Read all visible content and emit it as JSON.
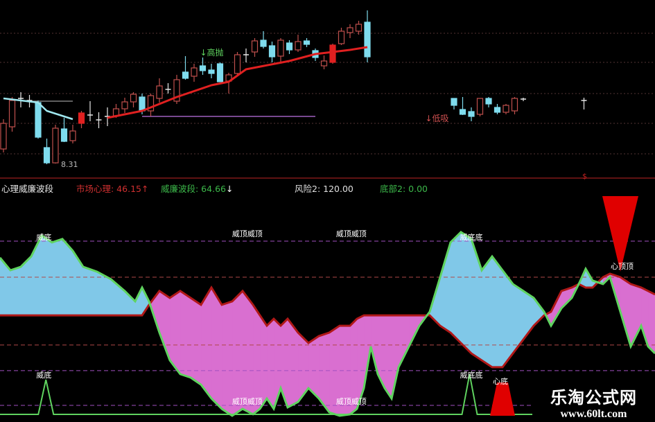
{
  "header": {
    "indicator_name": "心理威廉波段",
    "market_psych_label": "市场心理: 46.15",
    "market_psych_arrow": "↑",
    "williams_label": "威廉波段: 64.66",
    "williams_arrow": "↓",
    "risk_label": "风险2: 120.00",
    "bottom_label": "底部2: 0.00",
    "dollar_marker": "$"
  },
  "watermark": {
    "title": "乐淘公式网",
    "url": "www.60lt.com"
  },
  "colors": {
    "up": "#c0504d",
    "down": "#7fdcee",
    "ma": "#e02020",
    "williams_line": "#5fd35f",
    "psych_line": "#b01818",
    "fill_blue": "#80c8e8",
    "fill_pink": "#d96fd0",
    "signal_red": "#e00000"
  },
  "chart_data": [
    {
      "type": "candlestick",
      "title": "",
      "candles_ohlc": [
        [
          8.75,
          9.49,
          9.61,
          8.65
        ],
        [
          9.39,
          10.15,
          10.25,
          9.25
        ],
        [
          10.21,
          10.21,
          10.39,
          9.95
        ],
        [
          10.15,
          10.15,
          10.31,
          9.95
        ],
        [
          10.09,
          9.09,
          10.15,
          9.05
        ],
        [
          8.79,
          8.35,
          9.05,
          8.31
        ],
        [
          8.35,
          9.35,
          9.45,
          8.33
        ],
        [
          9.33,
          8.97,
          9.65,
          8.95
        ],
        [
          8.99,
          9.27,
          9.45,
          8.91
        ],
        [
          9.49,
          9.79,
          9.85,
          9.35
        ],
        [
          9.73,
          9.73,
          10.13,
          9.55
        ],
        [
          9.59,
          9.59,
          9.81,
          9.35
        ],
        [
          9.69,
          9.69,
          9.95,
          9.41
        ],
        [
          9.71,
          9.91,
          10.05,
          9.65
        ],
        [
          9.91,
          10.11,
          10.23,
          9.79
        ],
        [
          10.11,
          10.33,
          10.39,
          9.95
        ],
        [
          10.25,
          9.85,
          10.35,
          9.75
        ],
        [
          9.85,
          10.29,
          10.35,
          9.69
        ],
        [
          10.21,
          10.57,
          10.79,
          10.09
        ],
        [
          10.47,
          10.47,
          10.65,
          10.35
        ],
        [
          10.13,
          10.75,
          10.89,
          10.05
        ],
        [
          10.97,
          10.79,
          11.43,
          10.75
        ],
        [
          10.85,
          11.09,
          11.21,
          10.69
        ],
        [
          11.15,
          11.01,
          11.39,
          10.89
        ],
        [
          11.03,
          10.93,
          11.21,
          10.79
        ],
        [
          11.21,
          10.69,
          11.25,
          10.69
        ],
        [
          10.71,
          10.89,
          10.95,
          10.35
        ],
        [
          10.93,
          11.47,
          11.55,
          10.85
        ],
        [
          11.47,
          11.47,
          11.65,
          11.25
        ],
        [
          11.55,
          11.87,
          11.95,
          11.41
        ],
        [
          11.89,
          11.71,
          12.15,
          11.65
        ],
        [
          11.73,
          11.41,
          11.85,
          11.25
        ],
        [
          11.43,
          11.89,
          11.95,
          11.21
        ],
        [
          11.81,
          11.61,
          11.89,
          11.49
        ],
        [
          11.61,
          11.85,
          12.05,
          11.55
        ],
        [
          11.87,
          11.77,
          11.95,
          11.69
        ],
        [
          11.59,
          11.39,
          11.65,
          11.29
        ],
        [
          11.15,
          11.29,
          11.45,
          11.05
        ],
        [
          11.25,
          11.75,
          11.79,
          11.21
        ],
        [
          11.79,
          12.15,
          12.25,
          11.75
        ],
        [
          12.11,
          12.25,
          12.35,
          11.95
        ],
        [
          12.15,
          12.35,
          12.45,
          12.05
        ],
        [
          12.41,
          11.41,
          12.75,
          11.25
        ],
        null,
        null,
        null,
        null,
        null,
        null,
        null,
        null,
        null,
        [
          10.21,
          10.01,
          10.21,
          9.89
        ],
        [
          9.89,
          9.75,
          10.25,
          9.73
        ],
        [
          9.83,
          9.69,
          9.95,
          9.55
        ],
        [
          9.75,
          10.21,
          10.21,
          9.69
        ],
        [
          10.21,
          10.05,
          10.25,
          9.95
        ],
        [
          9.95,
          9.81,
          10.05,
          9.75
        ],
        [
          9.81,
          10.01,
          10.05,
          9.75
        ],
        [
          9.85,
          10.21,
          10.25,
          9.75
        ],
        [
          10.19,
          10.19,
          10.23,
          10.13
        ],
        null,
        null,
        null,
        null,
        null,
        null,
        [
          10.15,
          10.15,
          10.23,
          9.89
        ]
      ],
      "filled_up_bars": [
        9,
        38
      ],
      "ma_points": [
        [
          12,
          9.65
        ],
        [
          16,
          9.85
        ],
        [
          20,
          10.25
        ],
        [
          24,
          10.59
        ],
        [
          26,
          10.69
        ],
        [
          28,
          11.05
        ],
        [
          33,
          11.29
        ],
        [
          36,
          11.49
        ],
        [
          40,
          11.61
        ],
        [
          42,
          11.69
        ]
      ],
      "cyan_line_points": [
        [
          0,
          10.21
        ],
        [
          4,
          10.09
        ],
        [
          5,
          9.85
        ],
        [
          8,
          9.61
        ]
      ],
      "purple_level": {
        "value": 9.69,
        "from": 16,
        "to": 36
      },
      "grey_level": {
        "value": 10.13,
        "from": 3,
        "to": 8
      },
      "low_label": {
        "bar": 6,
        "text": "8.31"
      },
      "annotations": [
        {
          "bar": 23,
          "price": 11.45,
          "text": "高抛",
          "color": "#5fd35f"
        },
        {
          "bar": 49,
          "price": 9.55,
          "text": "低吸",
          "color": "#d05050"
        }
      ]
    },
    {
      "type": "area",
      "title": "心理威廉波段",
      "ylim": [
        0,
        120
      ],
      "x_bars": [
        -0.4,
        0.8,
        2,
        3.2,
        4.4,
        5.6,
        6.8,
        8,
        9.2,
        10.8,
        12.4,
        14,
        15.2,
        16,
        16.8,
        18,
        19.2,
        20.4,
        21.6,
        22.8,
        24,
        25.2,
        26.4,
        27.6,
        28.8,
        29.6,
        30.4,
        31.2,
        32,
        32.8,
        34,
        35.2,
        36.4,
        37.6,
        38.8,
        40,
        40.8,
        41.6,
        42.4,
        43.2,
        44,
        44.8,
        45.6,
        46.8,
        48,
        49.2,
        50.4,
        51.6,
        52.8,
        54,
        55.2,
        56.4,
        57.6,
        58.8,
        60,
        61.2,
        62.4,
        63.2,
        64.4,
        65.6,
        66.4,
        67.2,
        68,
        69.2,
        70,
        71.2,
        72.4,
        73.6,
        74.4,
        75.2
      ],
      "series": [
        {
          "name": "威廉波段",
          "values": [
            86.9,
            80.0,
            81.9,
            87.6,
            99.1,
            95.3,
            97.2,
            90.7,
            81.9,
            79.2,
            75.1,
            68.6,
            62.9,
            70.5,
            62.9,
            45.7,
            30.5,
            22.9,
            21.0,
            17.1,
            9.5,
            3.8,
            0,
            3.8,
            0.8,
            3.8,
            9.5,
            3.8,
            15.2,
            4.6,
            7.6,
            15.2,
            9.5,
            1.9,
            0,
            0.8,
            3.8,
            15.2,
            38.1,
            22.9,
            15.2,
            9.5,
            26.7,
            38.1,
            49.5,
            57.2,
            76.2,
            95.3,
            101,
            97.2,
            80.0,
            87.6,
            80.0,
            72.4,
            68.6,
            64.8,
            57.2,
            49.5,
            59.1,
            64.8,
            72.4,
            80.8,
            74.3,
            72.4,
            76.2,
            57.2,
            38.1,
            49.5,
            38.1,
            34.3
          ]
        },
        {
          "name": "市场心理",
          "values": [
            55.2,
            55.2,
            55.2,
            55.2,
            55.2,
            55.2,
            55.2,
            55.2,
            55.2,
            55.2,
            55.2,
            55.2,
            55.2,
            55.2,
            61.0,
            68.6,
            64.8,
            68.6,
            64.8,
            61.0,
            70.5,
            61.0,
            62.9,
            68.6,
            61.0,
            55.2,
            49.5,
            53.3,
            49.5,
            53.3,
            45.7,
            40.0,
            43.8,
            45.7,
            49.5,
            49.5,
            53.3,
            55.2,
            55.2,
            55.2,
            55.2,
            55.2,
            55.2,
            55.2,
            55.2,
            55.2,
            49.5,
            45.7,
            40.0,
            34.3,
            30.5,
            26.7,
            26.7,
            34.3,
            41.9,
            49.5,
            55.2,
            57.2,
            68.6,
            70.5,
            72.4,
            70.5,
            70.5,
            76.2,
            78.1,
            76.2,
            72.4,
            70.5,
            68.6,
            66.7
          ]
        }
      ],
      "signals": [
        {
          "kind": "williams-bottom",
          "bar": 4.9,
          "text": "威底",
          "value_label": "威底"
        },
        {
          "kind": "williams-bottom",
          "bar": 53.8,
          "text": "威底底",
          "value_label": "威底底"
        },
        {
          "kind": "williams-top",
          "bar": 27.5,
          "text": "威顶威顶"
        },
        {
          "kind": "williams-top",
          "bar": 39.5,
          "text": "威顶威顶"
        },
        {
          "kind": "psych-bottom",
          "bar": 57.6,
          "text": "心底"
        },
        {
          "kind": "psych-top",
          "bar": 71.2,
          "text": "心顶顶"
        }
      ]
    }
  ]
}
